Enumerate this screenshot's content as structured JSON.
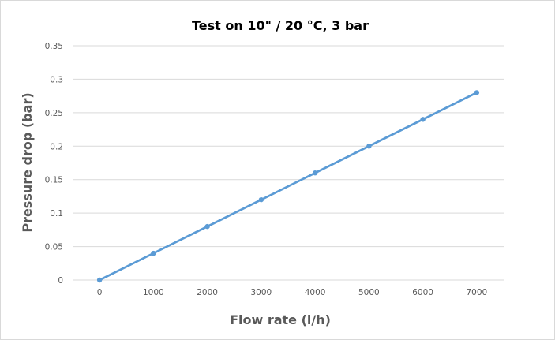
{
  "chart_data": {
    "type": "line",
    "title": "Test on 10\" / 20 °C, 3 bar",
    "xlabel": "Flow rate (l/h)",
    "ylabel": "Pressure drop (bar)",
    "x": [
      0,
      1000,
      2000,
      3000,
      4000,
      5000,
      6000,
      7000
    ],
    "x_tick_labels": [
      "0",
      "1000",
      "2000",
      "3000",
      "4000",
      "5000",
      "6000",
      "7000"
    ],
    "y_tick_values": [
      0,
      0.05,
      0.1,
      0.15,
      0.2,
      0.25,
      0.3,
      0.35
    ],
    "y_tick_labels": [
      "0",
      "0.05",
      "0.1",
      "0.15",
      "0.2",
      "0.25",
      "0.3",
      "0.35"
    ],
    "ylim": [
      0,
      0.35
    ],
    "grid": true,
    "legend": "none",
    "series": [
      {
        "color": "#5b9bd5",
        "values": [
          0,
          0.04,
          0.08,
          0.12,
          0.16,
          0.2,
          0.24,
          0.28
        ]
      }
    ]
  }
}
